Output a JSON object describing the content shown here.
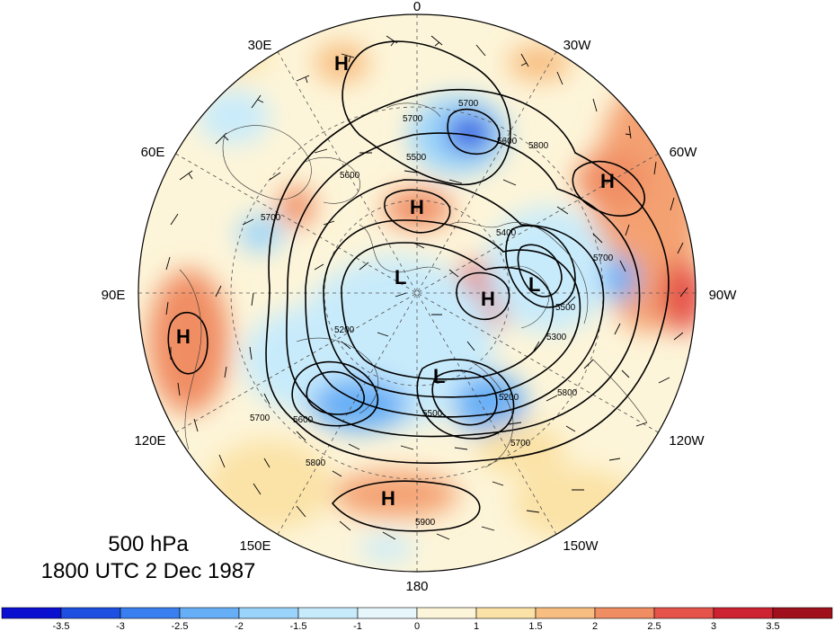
{
  "map": {
    "level": "500 hPa",
    "valid_time": "1800 UTC 2 Dec 1987",
    "longitude_labels": [
      "0",
      "30W",
      "60W",
      "90W",
      "120W",
      "150W",
      "180",
      "150E",
      "120E",
      "90E",
      "60E",
      "30E"
    ],
    "contour_labels": [
      "5700",
      "5700",
      "5500",
      "5800",
      "5600",
      "5700",
      "5400",
      "5200",
      "5700",
      "5500",
      "5200",
      "5700",
      "5800",
      "5500",
      "5300",
      "5900",
      "5600",
      "5800",
      "5700",
      "5600"
    ],
    "highs": [
      "H",
      "H",
      "H",
      "H",
      "H",
      "H"
    ],
    "lows": [
      "L",
      "L",
      "L"
    ]
  },
  "colorbar": {
    "ticks": [
      "-3.5",
      "-3",
      "-2.5",
      "-2",
      "-1.5",
      "-1",
      "0",
      "1",
      "1.5",
      "2",
      "2.5",
      "3",
      "3.5"
    ],
    "colors": [
      "#0a0fd0",
      "#1d4fe0",
      "#3a7ff0",
      "#66aff7",
      "#9bd4fa",
      "#c8ebfb",
      "#e6f6fb",
      "#fdf5d9",
      "#fbe2a6",
      "#f8bd80",
      "#f08d63",
      "#e5534a",
      "#cc2232",
      "#a0101c"
    ]
  }
}
